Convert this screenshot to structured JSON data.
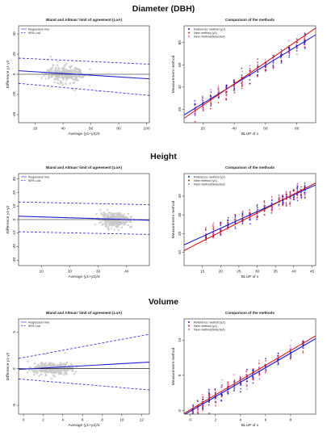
{
  "sections": [
    {
      "heading": "Diameter (DBH)"
    },
    {
      "heading": "Height"
    },
    {
      "heading": "Volume"
    }
  ],
  "colors": {
    "points_gray": "#c8c8c8",
    "line_blue": "#2020d0",
    "loa_blue": "#3a3ae0",
    "reference_blue": "#1a1ad0",
    "new_red": "#d01a1a",
    "selected_pink": "#e060c0",
    "zero_line": "#000000"
  },
  "chart_data": [
    {
      "id": "ba-dbh",
      "type": "scatter",
      "title": "Bland and Altman' limit of agreement (LoA)",
      "xlabel": "Average (y1+y2)/2",
      "ylabel": "Difference y1-y2",
      "xlim": [
        8,
        102
      ],
      "ylim": [
        -48,
        48
      ],
      "xticks": [
        20,
        40,
        60,
        80,
        100
      ],
      "yticks": [
        -40,
        -20,
        0,
        20,
        40
      ],
      "legend": {
        "position": "top-left",
        "entries": [
          "Regression line",
          "95% LoA"
        ]
      },
      "cloud": {
        "x_center": 42,
        "x_spread": 14,
        "y_spread": 4,
        "count": 260
      },
      "regression_line": {
        "x": [
          8,
          102
        ],
        "y": [
          3.5,
          -4.5
        ]
      },
      "loa_upper": {
        "x": [
          8,
          102
        ],
        "y": [
          16,
          10
        ]
      },
      "loa_lower": {
        "x": [
          8,
          102
        ],
        "y": [
          -9,
          -21
        ]
      },
      "zero_line": 0,
      "grid": false
    },
    {
      "id": "cmp-dbh",
      "type": "scatter",
      "title": "Comparison of the methods",
      "xlabel": "BLUP of x",
      "ylabel": "Measurement method",
      "xlim": [
        8,
        92
      ],
      "ylim": [
        8,
        95
      ],
      "xticks": [
        20,
        40,
        60,
        80
      ],
      "yticks": [
        20,
        40,
        60,
        80
      ],
      "legend": {
        "position": "top-left",
        "entries": [
          "Reference method (y2)",
          "New method (y1)",
          "New method(Selected)"
        ]
      },
      "columns": [
        15,
        20,
        25,
        30,
        35,
        40,
        45,
        50,
        55,
        60,
        65,
        70,
        75,
        80,
        85
      ],
      "reference_line": {
        "x": [
          8,
          92
        ],
        "y": [
          15,
          87
        ]
      },
      "new_line": {
        "x": [
          8,
          92
        ],
        "y": [
          12,
          93
        ]
      },
      "grid": false
    },
    {
      "id": "ba-height",
      "type": "scatter",
      "title": "Bland and Altman' limit of agreement (LoA)",
      "xlabel": "Average (y1+y2)/2",
      "ylabel": "Difference y1-y2",
      "xlim": [
        2,
        48
      ],
      "ylim": [
        -34,
        34
      ],
      "xticks": [
        10,
        20,
        30,
        40
      ],
      "yticks": [
        -30,
        -20,
        -10,
        0,
        10,
        20,
        30
      ],
      "legend": {
        "position": "top-left",
        "entries": [
          "Regression line",
          "95% LoA"
        ]
      },
      "cloud": {
        "x_center": 36,
        "x_spread": 5,
        "y_spread": 3,
        "count": 280
      },
      "regression_line": {
        "x": [
          2,
          48
        ],
        "y": [
          2.5,
          -0.5
        ]
      },
      "loa_upper": {
        "x": [
          2,
          48
        ],
        "y": [
          13,
          11
        ]
      },
      "loa_lower": {
        "x": [
          2,
          48
        ],
        "y": [
          -9,
          -11
        ]
      },
      "zero_line": 0,
      "grid": false
    },
    {
      "id": "cmp-height",
      "type": "scatter",
      "title": "Comparison of the methods",
      "xlabel": "BLUP of x",
      "ylabel": "Measurement method",
      "xlim": [
        10,
        46
      ],
      "ylim": [
        3,
        52
      ],
      "xticks": [
        15,
        20,
        25,
        30,
        35,
        40,
        45
      ],
      "yticks": [
        10,
        20,
        30,
        40
      ],
      "legend": {
        "position": "top-left",
        "entries": [
          "Reference method (y2)",
          "New method (y1)",
          "New method(Selected)"
        ]
      },
      "columns": [
        16,
        18,
        20,
        22,
        24,
        26,
        28,
        30,
        32,
        34,
        36,
        37,
        38,
        39,
        40,
        41,
        42,
        43
      ],
      "reference_line": {
        "x": [
          10,
          46
        ],
        "y": [
          14,
          46
        ]
      },
      "new_line": {
        "x": [
          10,
          46
        ],
        "y": [
          11,
          47
        ]
      },
      "grid": false
    },
    {
      "id": "ba-volume",
      "type": "scatter",
      "title": "Bland and Altman' limit of agreement (LoA)",
      "xlabel": "Average (y1+y2)/2",
      "ylabel": "Difference y1-y2",
      "xlim": [
        -0.5,
        12.8
      ],
      "ylim": [
        -6.2,
        6.8
      ],
      "xticks": [
        0,
        2,
        4,
        6,
        8,
        10,
        12
      ],
      "yticks": [
        -5,
        0,
        5
      ],
      "legend": {
        "position": "top-left",
        "entries": [
          "Regression line",
          "95% LoA"
        ]
      },
      "cloud": {
        "x_center": 3,
        "x_spread": 2.2,
        "y_spread": 0.5,
        "count": 260
      },
      "regression_line": {
        "x": [
          -0.5,
          12.8
        ],
        "y": [
          -0.1,
          0.9
        ]
      },
      "loa_upper": {
        "x": [
          -0.5,
          12.8
        ],
        "y": [
          1.4,
          4.7
        ]
      },
      "loa_lower": {
        "x": [
          -0.5,
          12.8
        ],
        "y": [
          -1.4,
          -2.9
        ]
      },
      "zero_line": 0,
      "grid": false
    },
    {
      "id": "cmp-volume",
      "type": "scatter",
      "title": "Comparison of the methods",
      "xlabel": "BLUP of x",
      "ylabel": "Measurement method",
      "xlim": [
        -0.5,
        10
      ],
      "ylim": [
        -0.5,
        13
      ],
      "xticks": [
        0,
        2,
        4,
        6,
        8
      ],
      "yticks": [
        0,
        5,
        10
      ],
      "legend": {
        "position": "top-left",
        "entries": [
          "Reference method (y2)",
          "New method (y1)",
          "New method(Selected)"
        ]
      },
      "columns": [
        0.2,
        0.6,
        1.0,
        1.5,
        2.0,
        2.5,
        3.0,
        3.5,
        4.0,
        4.5,
        5.0,
        5.5,
        6.0,
        7.0,
        8.0,
        9.0
      ],
      "reference_line": {
        "x": [
          -0.5,
          10
        ],
        "y": [
          -0.6,
          10.2
        ]
      },
      "new_line": {
        "x": [
          -0.5,
          10
        ],
        "y": [
          -0.4,
          10.6
        ]
      },
      "grid": false
    }
  ]
}
